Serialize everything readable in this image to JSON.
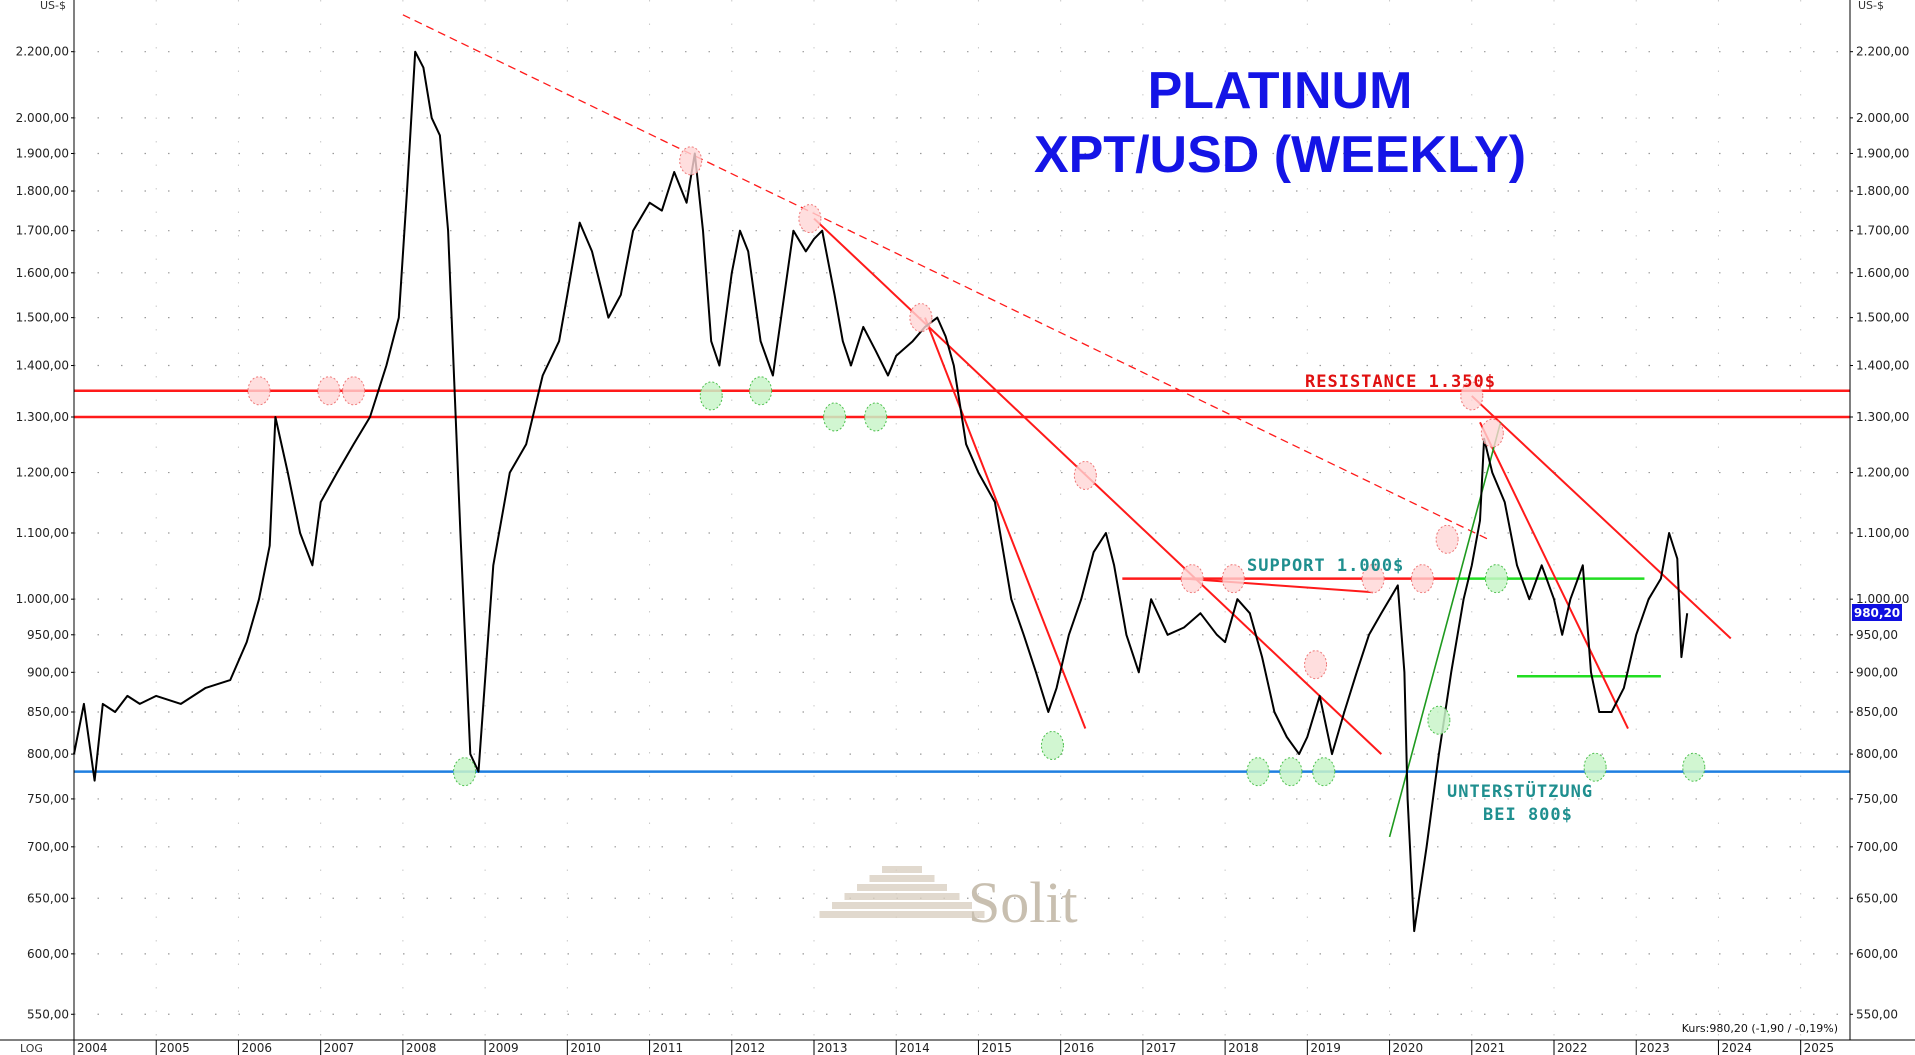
{
  "chart_data": {
    "type": "line",
    "title": "PLATINUM",
    "subtitle": "XPT/USD (WEEKLY)",
    "scale": "log",
    "unit_label_left": "US-$",
    "unit_label_right": "US-$",
    "scale_label": "LOG",
    "grid": true,
    "ylim": [
      530,
      2370
    ],
    "y_ticks": [
      550,
      600,
      650,
      700,
      750,
      800,
      850,
      900,
      950,
      1000,
      1100,
      1200,
      1300,
      1400,
      1500,
      1600,
      1700,
      1800,
      1900,
      2000,
      2200
    ],
    "y_tick_labels": [
      "550,00",
      "600,00",
      "650,00",
      "700,00",
      "750,00",
      "800,00",
      "850,00",
      "900,00",
      "950,00",
      "1.000,00",
      "1.100,00",
      "1.200,00",
      "1.300,00",
      "1.400,00",
      "1.500,00",
      "1.600,00",
      "1.700,00",
      "1.800,00",
      "1.900,00",
      "2.000,00",
      "2.200,00"
    ],
    "x_tick_labels": [
      "2004",
      "2005",
      "2006",
      "2007",
      "2008",
      "2009",
      "2010",
      "2011",
      "2012",
      "2013",
      "2014",
      "2015",
      "2016",
      "2017",
      "2018",
      "2019",
      "2020",
      "2021",
      "2022",
      "2023",
      "2024",
      "2025"
    ],
    "xlim": [
      2004.0,
      2025.6
    ],
    "series": [
      {
        "color": "#000000",
        "x": [
          2004.0,
          2004.12,
          2004.25,
          2004.35,
          2004.5,
          2004.65,
          2004.8,
          2005.0,
          2005.3,
          2005.6,
          2005.9,
          2006.1,
          2006.25,
          2006.38,
          2006.45,
          2006.6,
          2006.75,
          2006.9,
          2007.0,
          2007.2,
          2007.4,
          2007.6,
          2007.8,
          2007.95,
          2008.05,
          2008.15,
          2008.25,
          2008.35,
          2008.45,
          2008.55,
          2008.7,
          2008.82,
          2008.92,
          2009.1,
          2009.3,
          2009.5,
          2009.7,
          2009.9,
          2010.0,
          2010.15,
          2010.3,
          2010.5,
          2010.65,
          2010.8,
          2011.0,
          2011.15,
          2011.3,
          2011.45,
          2011.55,
          2011.65,
          2011.75,
          2011.85,
          2012.0,
          2012.1,
          2012.2,
          2012.35,
          2012.5,
          2012.6,
          2012.75,
          2012.9,
          2013.0,
          2013.1,
          2013.25,
          2013.35,
          2013.45,
          2013.6,
          2013.75,
          2013.9,
          2014.0,
          2014.2,
          2014.35,
          2014.5,
          2014.6,
          2014.7,
          2014.85,
          2015.0,
          2015.2,
          2015.4,
          2015.55,
          2015.7,
          2015.85,
          2015.95,
          2016.1,
          2016.25,
          2016.4,
          2016.55,
          2016.65,
          2016.8,
          2016.95,
          2017.1,
          2017.3,
          2017.5,
          2017.7,
          2017.9,
          2018.0,
          2018.15,
          2018.3,
          2018.45,
          2018.6,
          2018.75,
          2018.9,
          2019.0,
          2019.15,
          2019.3,
          2019.45,
          2019.6,
          2019.75,
          2019.9,
          2020.0,
          2020.1,
          2020.18,
          2020.22,
          2020.3,
          2020.45,
          2020.6,
          2020.75,
          2020.9,
          2021.0,
          2021.1,
          2021.15,
          2021.25,
          2021.4,
          2021.55,
          2021.7,
          2021.85,
          2022.0,
          2022.1,
          2022.2,
          2022.35,
          2022.45,
          2022.55,
          2022.7,
          2022.85,
          2023.0,
          2023.15,
          2023.3,
          2023.4,
          2023.5,
          2023.55,
          2023.62
        ],
        "values": [
          800,
          860,
          770,
          860,
          850,
          870,
          860,
          870,
          860,
          880,
          890,
          940,
          1000,
          1080,
          1300,
          1200,
          1100,
          1050,
          1150,
          1200,
          1250,
          1300,
          1400,
          1500,
          1800,
          2200,
          2150,
          2000,
          1950,
          1700,
          1100,
          800,
          780,
          1050,
          1200,
          1250,
          1380,
          1450,
          1550,
          1720,
          1650,
          1500,
          1550,
          1700,
          1770,
          1750,
          1850,
          1770,
          1900,
          1700,
          1450,
          1400,
          1600,
          1700,
          1650,
          1450,
          1380,
          1500,
          1700,
          1650,
          1680,
          1700,
          1550,
          1450,
          1400,
          1480,
          1430,
          1380,
          1420,
          1450,
          1480,
          1500,
          1460,
          1400,
          1250,
          1200,
          1150,
          1000,
          950,
          900,
          850,
          880,
          950,
          1000,
          1070,
          1100,
          1050,
          950,
          900,
          1000,
          950,
          960,
          980,
          950,
          940,
          1000,
          980,
          920,
          850,
          820,
          800,
          820,
          870,
          800,
          850,
          900,
          950,
          980,
          1000,
          1020,
          900,
          750,
          620,
          700,
          800,
          900,
          1000,
          1050,
          1120,
          1260,
          1200,
          1150,
          1050,
          1000,
          1050,
          1000,
          950,
          1000,
          1050,
          900,
          850,
          850,
          880,
          950,
          1000,
          1030,
          1100,
          1060,
          920,
          980
        ]
      }
    ],
    "annotations": [
      "RESISTANCE 1.350$",
      "SUPPORT 1.000$",
      "UNTERSTÜTZUNG",
      "BEI 800$"
    ],
    "last_price_label": "980,20",
    "footer_quote": "Kurs:980,20 (-1,90 / -0,19%)",
    "watermark": "Solit"
  },
  "colors": {
    "title": "#1414e6",
    "price": "#000000",
    "resistance": "#ff1a1a",
    "support_blue": "#1f7fe0",
    "support_green": "#22dd22",
    "trend_green": "#1f9a1f",
    "annotation_teal": "#1f8f8f",
    "annotation_red": "#e01010",
    "price_tag_bg": "#1010e0"
  }
}
